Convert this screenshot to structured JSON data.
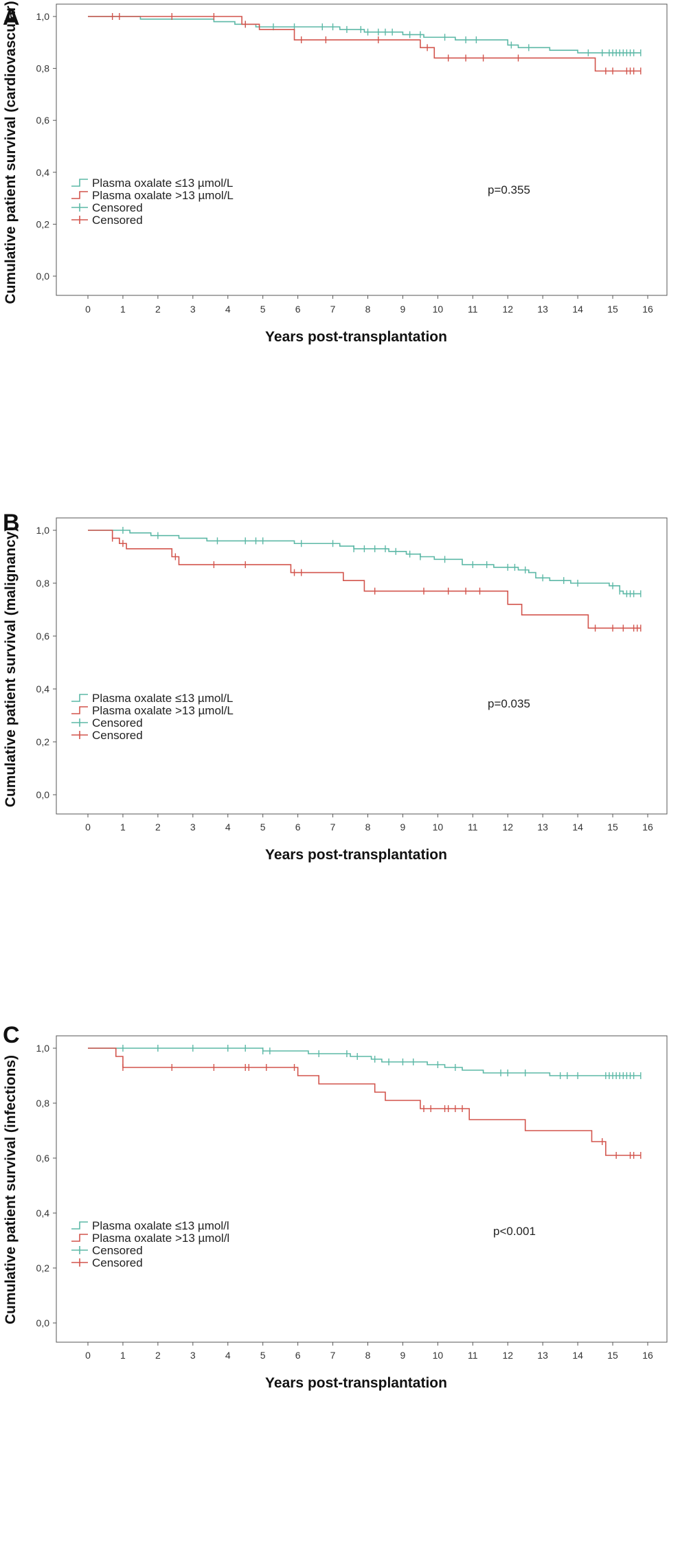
{
  "colors": {
    "green": "#5cb8a6",
    "red": "#d2544c",
    "axis": "#555555"
  },
  "chart_data": [
    {
      "type": "line",
      "panel": "A",
      "xlabel": "Years post-transplantation",
      "ylabel": "Cumulative patient survival (cardiovascular)",
      "xlim": [
        0,
        16
      ],
      "ylim": [
        0,
        1
      ],
      "xticks": [
        "0",
        "1",
        "2",
        "3",
        "4",
        "5",
        "6",
        "7",
        "8",
        "9",
        "10",
        "11",
        "12",
        "13",
        "14",
        "15",
        "16"
      ],
      "yticks": [
        "0,0",
        "0,2",
        "0,4",
        "0,6",
        "0,8",
        "1,0"
      ],
      "pvalue": "p=0.355",
      "legend": [
        "Plasma oxalate ≤13 µmol/L",
        "Plasma oxalate >13 µmol/L",
        "Censored",
        "Censored"
      ],
      "series": [
        {
          "name": "Plasma oxalate ≤13 µmol/L",
          "color": "green",
          "steps": [
            [
              0,
              1.0
            ],
            [
              1.5,
              0.99
            ],
            [
              3.6,
              0.98
            ],
            [
              4.2,
              0.97
            ],
            [
              4.8,
              0.96
            ],
            [
              7.2,
              0.95
            ],
            [
              7.9,
              0.94
            ],
            [
              9.0,
              0.93
            ],
            [
              9.6,
              0.92
            ],
            [
              10.5,
              0.91
            ],
            [
              12.0,
              0.89
            ],
            [
              12.3,
              0.88
            ],
            [
              13.2,
              0.87
            ],
            [
              14.0,
              0.86
            ],
            [
              15.8,
              0.86
            ]
          ],
          "censored": [
            4.5,
            5.3,
            5.9,
            6.7,
            7.0,
            7.4,
            7.8,
            8.0,
            8.3,
            8.5,
            8.7,
            9.2,
            9.5,
            10.2,
            10.8,
            11.1,
            12.1,
            12.6,
            14.3,
            14.7,
            14.9,
            15.0,
            15.1,
            15.2,
            15.3,
            15.4,
            15.5,
            15.6,
            15.8
          ]
        },
        {
          "name": "Plasma oxalate >13 µmol/L",
          "color": "red",
          "steps": [
            [
              0,
              1.0
            ],
            [
              4.4,
              0.97
            ],
            [
              4.9,
              0.95
            ],
            [
              5.9,
              0.91
            ],
            [
              9.5,
              0.88
            ],
            [
              9.9,
              0.84
            ],
            [
              14.5,
              0.79
            ],
            [
              15.8,
              0.79
            ]
          ],
          "censored": [
            0.7,
            0.9,
            2.4,
            3.6,
            4.5,
            6.1,
            6.8,
            8.3,
            9.7,
            10.3,
            10.8,
            11.3,
            12.3,
            14.8,
            15.0,
            15.4,
            15.5,
            15.6,
            15.8
          ]
        }
      ]
    },
    {
      "type": "line",
      "panel": "B",
      "xlabel": "Years post-transplantation",
      "ylabel": "Cumulative patient survival (malignancy)",
      "xlim": [
        0,
        16
      ],
      "ylim": [
        0,
        1
      ],
      "xticks": [
        "0",
        "1",
        "2",
        "3",
        "4",
        "5",
        "6",
        "7",
        "8",
        "9",
        "10",
        "11",
        "12",
        "13",
        "14",
        "15",
        "16"
      ],
      "yticks": [
        "0,0",
        "0,2",
        "0,4",
        "0,6",
        "0,8",
        "1,0"
      ],
      "pvalue": "p=0.035",
      "legend": [
        "Plasma oxalate ≤13 µmol/L",
        "Plasma oxalate >13 µmol/L",
        "Censored",
        "Censored"
      ],
      "series": [
        {
          "name": "Plasma oxalate ≤13 µmol/L",
          "color": "green",
          "steps": [
            [
              0,
              1.0
            ],
            [
              1.2,
              0.99
            ],
            [
              1.8,
              0.98
            ],
            [
              2.6,
              0.97
            ],
            [
              3.4,
              0.96
            ],
            [
              5.9,
              0.95
            ],
            [
              7.2,
              0.94
            ],
            [
              7.6,
              0.93
            ],
            [
              8.6,
              0.92
            ],
            [
              9.1,
              0.91
            ],
            [
              9.5,
              0.9
            ],
            [
              9.9,
              0.89
            ],
            [
              10.7,
              0.87
            ],
            [
              11.6,
              0.86
            ],
            [
              12.3,
              0.85
            ],
            [
              12.6,
              0.84
            ],
            [
              12.8,
              0.82
            ],
            [
              13.2,
              0.81
            ],
            [
              13.8,
              0.8
            ],
            [
              14.9,
              0.79
            ],
            [
              15.2,
              0.77
            ],
            [
              15.3,
              0.76
            ],
            [
              15.8,
              0.76
            ]
          ],
          "censored": [
            1.0,
            2.0,
            3.7,
            4.5,
            4.8,
            5.0,
            6.1,
            7.0,
            7.6,
            7.9,
            8.2,
            8.5,
            8.8,
            9.2,
            9.5,
            10.2,
            11.0,
            11.4,
            12.0,
            12.2,
            12.5,
            13.0,
            13.6,
            14.0,
            15.0,
            15.2,
            15.4,
            15.5,
            15.6,
            15.8
          ]
        },
        {
          "name": "Plasma oxalate >13 µmol/L",
          "color": "red",
          "steps": [
            [
              0,
              1.0
            ],
            [
              0.7,
              0.97
            ],
            [
              0.9,
              0.95
            ],
            [
              1.1,
              0.93
            ],
            [
              2.4,
              0.9
            ],
            [
              2.6,
              0.87
            ],
            [
              5.8,
              0.84
            ],
            [
              7.3,
              0.81
            ],
            [
              7.9,
              0.77
            ],
            [
              12.0,
              0.72
            ],
            [
              12.4,
              0.68
            ],
            [
              14.3,
              0.63
            ],
            [
              15.8,
              0.63
            ]
          ],
          "censored": [
            0.7,
            1.0,
            2.5,
            3.6,
            4.5,
            5.9,
            6.1,
            8.2,
            9.6,
            10.3,
            10.8,
            11.2,
            14.5,
            15.0,
            15.3,
            15.6,
            15.7,
            15.8
          ]
        }
      ]
    },
    {
      "type": "line",
      "panel": "C",
      "xlabel": "Years post-transplantation",
      "ylabel": "Cumulative patient survival (infections)",
      "xlim": [
        0,
        16
      ],
      "ylim": [
        0,
        1
      ],
      "xticks": [
        "0",
        "1",
        "2",
        "3",
        "4",
        "5",
        "6",
        "7",
        "8",
        "9",
        "10",
        "11",
        "12",
        "13",
        "14",
        "15",
        "16"
      ],
      "yticks": [
        "0,0",
        "0,2",
        "0,4",
        "0,6",
        "0,8",
        "1,0"
      ],
      "pvalue": "p<0.001",
      "legend": [
        "Plasma oxalate ≤13 µmol/l",
        "Plasma oxalate >13 µmol/l",
        "Censored",
        "Censored"
      ],
      "series": [
        {
          "name": "Plasma oxalate ≤13 µmol/l",
          "color": "green",
          "steps": [
            [
              0,
              1.0
            ],
            [
              5.0,
              0.99
            ],
            [
              6.3,
              0.98
            ],
            [
              7.5,
              0.97
            ],
            [
              8.1,
              0.96
            ],
            [
              8.4,
              0.95
            ],
            [
              9.7,
              0.94
            ],
            [
              10.2,
              0.93
            ],
            [
              10.7,
              0.92
            ],
            [
              11.3,
              0.91
            ],
            [
              13.2,
              0.9
            ],
            [
              15.8,
              0.9
            ]
          ],
          "censored": [
            1.0,
            2.0,
            3.0,
            4.0,
            4.5,
            5.0,
            5.2,
            6.6,
            7.4,
            7.7,
            8.2,
            8.6,
            9.0,
            9.3,
            10.0,
            10.5,
            11.8,
            12.0,
            12.5,
            13.5,
            13.7,
            14.0,
            14.8,
            14.9,
            15.0,
            15.1,
            15.2,
            15.3,
            15.4,
            15.5,
            15.6,
            15.8
          ]
        },
        {
          "name": "Plasma oxalate >13 µmol/l",
          "color": "red",
          "steps": [
            [
              0,
              1.0
            ],
            [
              0.8,
              0.97
            ],
            [
              1.0,
              0.93
            ],
            [
              6.0,
              0.9
            ],
            [
              6.6,
              0.87
            ],
            [
              8.2,
              0.84
            ],
            [
              8.5,
              0.81
            ],
            [
              9.5,
              0.78
            ],
            [
              10.9,
              0.74
            ],
            [
              12.5,
              0.7
            ],
            [
              14.4,
              0.66
            ],
            [
              14.8,
              0.61
            ],
            [
              15.8,
              0.61
            ]
          ],
          "censored": [
            1.0,
            2.4,
            3.6,
            4.5,
            4.6,
            5.1,
            5.9,
            9.6,
            9.8,
            10.2,
            10.3,
            10.5,
            10.7,
            14.7,
            15.1,
            15.5,
            15.6,
            15.8
          ]
        }
      ]
    }
  ]
}
